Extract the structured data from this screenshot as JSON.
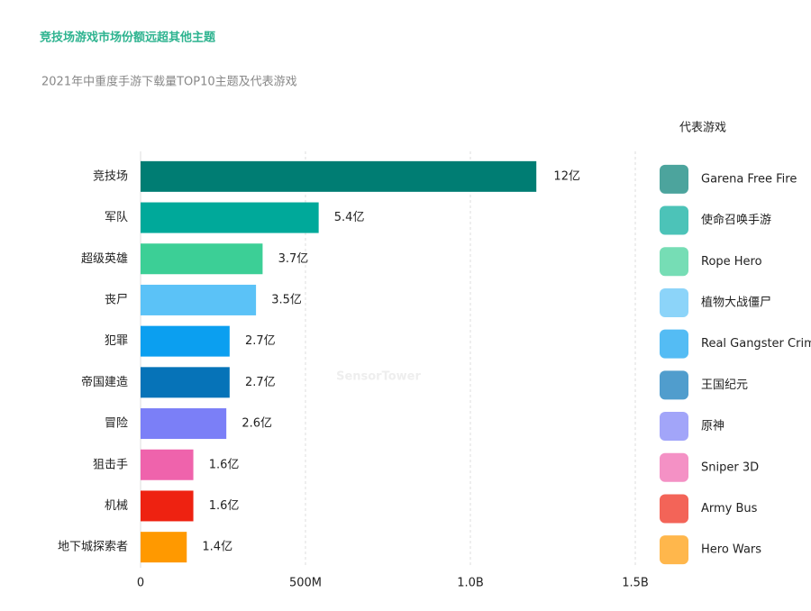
{
  "chart_data": {
    "type": "bar",
    "orientation": "horizontal",
    "title": "竞技场游戏市场份额远超其他主题",
    "subtitle": "2021年中重度手游下载量TOP10主题及代表游戏",
    "watermark": "SensorTower",
    "categories": [
      "竞技场",
      "军队",
      "超级英雄",
      "丧尸",
      "犯罪",
      "帝国建造",
      "冒险",
      "狙击手",
      "机械",
      "地下城探索者"
    ],
    "values": [
      1200000000,
      540000000,
      370000000,
      350000000,
      270000000,
      270000000,
      260000000,
      160000000,
      160000000,
      140000000
    ],
    "value_labels": [
      "12亿",
      "5.4亿",
      "3.7亿",
      "3.5亿",
      "2.7亿",
      "2.7亿",
      "2.6亿",
      "1.6亿",
      "1.6亿",
      "1.4亿"
    ],
    "colors": [
      "#007d73",
      "#00a99a",
      "#3ccf96",
      "#5bc2f7",
      "#0b9ff0",
      "#0673b8",
      "#7b7ff7",
      "#ef63ac",
      "#ee2211",
      "#ff9900"
    ],
    "xlim": [
      0,
      1500000000
    ],
    "xticks": [
      0,
      {
        "value": 500000000,
        "label": "500M"
      },
      {
        "value": 1000000000,
        "label": "1.0B"
      },
      {
        "value": 1500000000,
        "label": "1.5B"
      }
    ],
    "grid": true,
    "games_title": "代表游戏",
    "games": [
      "Garena Free Fire",
      "使命召唤手游",
      "Rope Hero",
      "植物大战僵尸",
      "Real Gangster Crime",
      "王国纪元",
      "原神",
      "Sniper 3D",
      "Army Bus",
      "Hero Wars"
    ]
  }
}
